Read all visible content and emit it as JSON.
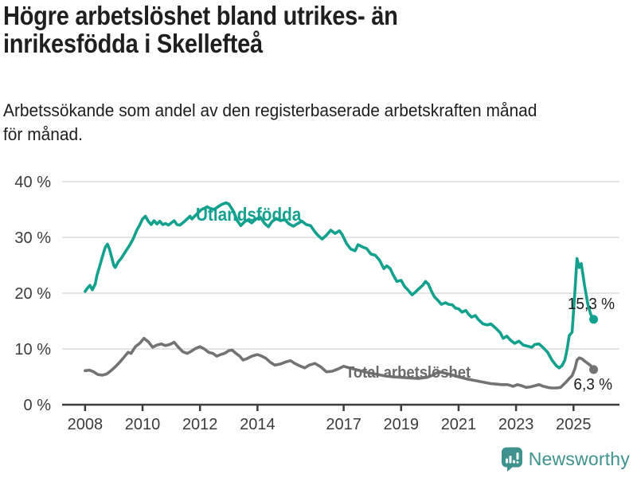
{
  "header": {
    "title_line1": "Högre arbetslöshet bland utrikes- än",
    "title_line2": "inrikesfödda i Skellefteå",
    "subtitle_line1": "Arbetssökande som andel av den registerbaserade arbetskraften månad",
    "subtitle_line2": "för månad."
  },
  "footer": {
    "brand": "Newsworthy"
  },
  "colors": {
    "teal": "#12a08f",
    "gray_line": "#737373",
    "gray_label": "#6b6b6b",
    "grid": "#dcdcdc",
    "axis": "#3c3c3c",
    "axis_text": "#3c3c3c",
    "title": "#1d1f21",
    "value_label": "#1c1c1c",
    "brand": "#3f928d",
    "background": "#ffffff"
  },
  "chart_data": {
    "type": "line",
    "title": "Högre arbetslöshet bland utrikes- än inrikesfödda i Skellefteå",
    "subtitle": "Arbetssökande som andel av den registerbaserade arbetskraften månad för månad.",
    "xlabel": "",
    "ylabel": "",
    "grid": "horizontal",
    "x_axis": {
      "min": 2007.2,
      "max": 2026.6,
      "ticks": [
        2008,
        2010,
        2012,
        2014,
        2017,
        2019,
        2021,
        2023,
        2025
      ],
      "labels": [
        "2008",
        "2010",
        "2012",
        "2014",
        "2017",
        "2019",
        "2021",
        "2023",
        "2025"
      ]
    },
    "y_axis": {
      "min": 0,
      "max": 40,
      "ticks": [
        0,
        10,
        20,
        30,
        40
      ],
      "labels": [
        "0 %",
        "10 %",
        "20 %",
        "30 %",
        "40 %"
      ]
    },
    "series": [
      {
        "name": "Utlandsfödda",
        "color": "#12a08f",
        "end_label": "15,3 %",
        "end_value": 15.3,
        "points": [
          [
            2008.0,
            20.3
          ],
          [
            2008.08,
            20.9
          ],
          [
            2008.17,
            21.4
          ],
          [
            2008.25,
            20.6
          ],
          [
            2008.35,
            21.6
          ],
          [
            2008.42,
            23.3
          ],
          [
            2008.5,
            24.7
          ],
          [
            2008.6,
            26.5
          ],
          [
            2008.7,
            28.2
          ],
          [
            2008.78,
            28.8
          ],
          [
            2008.85,
            27.9
          ],
          [
            2008.92,
            26.5
          ],
          [
            2009.0,
            25.0
          ],
          [
            2009.05,
            24.6
          ],
          [
            2009.15,
            25.6
          ],
          [
            2009.25,
            26.2
          ],
          [
            2009.35,
            27.0
          ],
          [
            2009.45,
            27.8
          ],
          [
            2009.55,
            28.6
          ],
          [
            2009.65,
            29.5
          ],
          [
            2009.72,
            30.3
          ],
          [
            2009.8,
            31.3
          ],
          [
            2009.9,
            32.2
          ],
          [
            2010.0,
            33.3
          ],
          [
            2010.1,
            33.8
          ],
          [
            2010.2,
            32.9
          ],
          [
            2010.3,
            32.3
          ],
          [
            2010.4,
            33.0
          ],
          [
            2010.5,
            32.4
          ],
          [
            2010.6,
            32.9
          ],
          [
            2010.7,
            32.3
          ],
          [
            2010.8,
            32.5
          ],
          [
            2010.9,
            32.2
          ],
          [
            2011.0,
            32.6
          ],
          [
            2011.1,
            33.0
          ],
          [
            2011.2,
            32.3
          ],
          [
            2011.3,
            32.2
          ],
          [
            2011.4,
            32.6
          ],
          [
            2011.55,
            33.3
          ],
          [
            2011.65,
            33.8
          ],
          [
            2011.72,
            33.3
          ],
          [
            2011.85,
            34.0
          ],
          [
            2011.95,
            34.5
          ],
          [
            2012.05,
            35.0
          ],
          [
            2012.15,
            35.2
          ],
          [
            2012.25,
            35.5
          ],
          [
            2012.35,
            35.2
          ],
          [
            2012.5,
            35.0
          ],
          [
            2012.6,
            35.4
          ],
          [
            2012.75,
            35.9
          ],
          [
            2012.9,
            36.2
          ],
          [
            2013.0,
            36.0
          ],
          [
            2013.15,
            34.8
          ],
          [
            2013.3,
            33.0
          ],
          [
            2013.42,
            32.1
          ],
          [
            2013.55,
            32.8
          ],
          [
            2013.65,
            33.1
          ],
          [
            2013.8,
            32.6
          ],
          [
            2013.95,
            33.3
          ],
          [
            2014.1,
            33.6
          ],
          [
            2014.25,
            32.5
          ],
          [
            2014.38,
            31.9
          ],
          [
            2014.5,
            32.8
          ],
          [
            2014.65,
            33.4
          ],
          [
            2014.8,
            33.0
          ],
          [
            2014.95,
            33.2
          ],
          [
            2015.1,
            32.4
          ],
          [
            2015.25,
            32.0
          ],
          [
            2015.4,
            32.5
          ],
          [
            2015.55,
            32.9
          ],
          [
            2015.7,
            32.3
          ],
          [
            2015.85,
            32.1
          ],
          [
            2016.0,
            31.0
          ],
          [
            2016.1,
            30.4
          ],
          [
            2016.25,
            29.7
          ],
          [
            2016.4,
            30.4
          ],
          [
            2016.55,
            31.3
          ],
          [
            2016.7,
            30.7
          ],
          [
            2016.85,
            31.2
          ],
          [
            2016.95,
            30.5
          ],
          [
            2017.1,
            28.9
          ],
          [
            2017.25,
            27.9
          ],
          [
            2017.4,
            27.6
          ],
          [
            2017.5,
            28.7
          ],
          [
            2017.65,
            28.3
          ],
          [
            2017.8,
            28.0
          ],
          [
            2017.95,
            27.0
          ],
          [
            2018.1,
            26.8
          ],
          [
            2018.25,
            25.9
          ],
          [
            2018.4,
            24.4
          ],
          [
            2018.5,
            24.9
          ],
          [
            2018.62,
            24.4
          ],
          [
            2018.72,
            23.3
          ],
          [
            2018.85,
            22.1
          ],
          [
            2019.0,
            22.3
          ],
          [
            2019.12,
            21.2
          ],
          [
            2019.25,
            20.5
          ],
          [
            2019.38,
            19.7
          ],
          [
            2019.5,
            20.2
          ],
          [
            2019.62,
            20.8
          ],
          [
            2019.75,
            21.4
          ],
          [
            2019.85,
            22.1
          ],
          [
            2019.95,
            21.6
          ],
          [
            2020.05,
            20.4
          ],
          [
            2020.15,
            19.4
          ],
          [
            2020.28,
            18.7
          ],
          [
            2020.4,
            18.0
          ],
          [
            2020.55,
            18.3
          ],
          [
            2020.65,
            18.0
          ],
          [
            2020.78,
            17.9
          ],
          [
            2020.9,
            17.3
          ],
          [
            2021.0,
            17.2
          ],
          [
            2021.12,
            16.6
          ],
          [
            2021.25,
            16.9
          ],
          [
            2021.35,
            16.2
          ],
          [
            2021.45,
            15.7
          ],
          [
            2021.58,
            16.0
          ],
          [
            2021.7,
            15.2
          ],
          [
            2021.85,
            14.5
          ],
          [
            2022.0,
            14.3
          ],
          [
            2022.12,
            14.5
          ],
          [
            2022.3,
            13.7
          ],
          [
            2022.45,
            12.9
          ],
          [
            2022.55,
            11.9
          ],
          [
            2022.68,
            12.3
          ],
          [
            2022.8,
            11.6
          ],
          [
            2022.95,
            11.0
          ],
          [
            2023.1,
            11.4
          ],
          [
            2023.25,
            10.7
          ],
          [
            2023.4,
            10.5
          ],
          [
            2023.55,
            10.3
          ],
          [
            2023.65,
            10.8
          ],
          [
            2023.8,
            10.9
          ],
          [
            2023.95,
            10.2
          ],
          [
            2024.1,
            9.4
          ],
          [
            2024.25,
            8.0
          ],
          [
            2024.4,
            7.0
          ],
          [
            2024.5,
            6.6
          ],
          [
            2024.6,
            7.0
          ],
          [
            2024.7,
            8.0
          ],
          [
            2024.78,
            10.0
          ],
          [
            2024.85,
            12.4
          ],
          [
            2024.95,
            13.0
          ],
          [
            2025.05,
            20.5
          ],
          [
            2025.12,
            26.2
          ],
          [
            2025.2,
            24.6
          ],
          [
            2025.27,
            25.3
          ],
          [
            2025.38,
            21.5
          ],
          [
            2025.5,
            18.0
          ],
          [
            2025.6,
            16.2
          ],
          [
            2025.7,
            15.3
          ]
        ]
      },
      {
        "name": "Total arbetslöshet",
        "color": "#737373",
        "end_label": "6,3 %",
        "end_value": 6.3,
        "points": [
          [
            2008.0,
            6.1
          ],
          [
            2008.15,
            6.2
          ],
          [
            2008.3,
            5.9
          ],
          [
            2008.45,
            5.4
          ],
          [
            2008.6,
            5.3
          ],
          [
            2008.75,
            5.5
          ],
          [
            2008.9,
            6.1
          ],
          [
            2009.05,
            6.8
          ],
          [
            2009.2,
            7.6
          ],
          [
            2009.35,
            8.5
          ],
          [
            2009.5,
            9.4
          ],
          [
            2009.6,
            9.2
          ],
          [
            2009.75,
            10.4
          ],
          [
            2009.9,
            11.0
          ],
          [
            2010.05,
            11.9
          ],
          [
            2010.2,
            11.3
          ],
          [
            2010.35,
            10.3
          ],
          [
            2010.5,
            10.7
          ],
          [
            2010.65,
            10.9
          ],
          [
            2010.8,
            10.6
          ],
          [
            2010.95,
            10.8
          ],
          [
            2011.1,
            11.2
          ],
          [
            2011.25,
            10.3
          ],
          [
            2011.4,
            9.5
          ],
          [
            2011.55,
            9.2
          ],
          [
            2011.7,
            9.6
          ],
          [
            2011.85,
            10.1
          ],
          [
            2012.0,
            10.4
          ],
          [
            2012.15,
            10.0
          ],
          [
            2012.3,
            9.4
          ],
          [
            2012.45,
            9.2
          ],
          [
            2012.58,
            8.7
          ],
          [
            2012.72,
            9.0
          ],
          [
            2012.85,
            9.2
          ],
          [
            2013.0,
            9.7
          ],
          [
            2013.12,
            9.8
          ],
          [
            2013.25,
            9.2
          ],
          [
            2013.38,
            8.7
          ],
          [
            2013.5,
            8.0
          ],
          [
            2013.65,
            8.3
          ],
          [
            2013.8,
            8.7
          ],
          [
            2014.0,
            9.0
          ],
          [
            2014.15,
            8.7
          ],
          [
            2014.3,
            8.3
          ],
          [
            2014.45,
            7.6
          ],
          [
            2014.6,
            7.1
          ],
          [
            2014.8,
            7.3
          ],
          [
            2015.0,
            7.7
          ],
          [
            2015.15,
            7.9
          ],
          [
            2015.3,
            7.4
          ],
          [
            2015.5,
            6.9
          ],
          [
            2015.65,
            6.6
          ],
          [
            2015.8,
            7.1
          ],
          [
            2016.0,
            7.4
          ],
          [
            2016.2,
            6.8
          ],
          [
            2016.4,
            5.9
          ],
          [
            2016.6,
            6.0
          ],
          [
            2016.8,
            6.4
          ],
          [
            2017.0,
            6.9
          ],
          [
            2017.2,
            6.6
          ],
          [
            2017.5,
            6.2
          ],
          [
            2017.8,
            5.8
          ],
          [
            2018.1,
            5.5
          ],
          [
            2018.4,
            5.2
          ],
          [
            2018.7,
            5.0
          ],
          [
            2019.0,
            4.9
          ],
          [
            2019.3,
            4.8
          ],
          [
            2019.6,
            4.7
          ],
          [
            2019.9,
            4.9
          ],
          [
            2020.1,
            5.3
          ],
          [
            2020.3,
            5.9
          ],
          [
            2020.5,
            5.7
          ],
          [
            2020.8,
            5.3
          ],
          [
            2021.0,
            5.0
          ],
          [
            2021.3,
            4.6
          ],
          [
            2021.6,
            4.3
          ],
          [
            2021.9,
            4.0
          ],
          [
            2022.1,
            3.8
          ],
          [
            2022.3,
            3.7
          ],
          [
            2022.5,
            3.6
          ],
          [
            2022.7,
            3.6
          ],
          [
            2022.9,
            3.3
          ],
          [
            2023.05,
            3.6
          ],
          [
            2023.2,
            3.4
          ],
          [
            2023.35,
            3.1
          ],
          [
            2023.5,
            3.2
          ],
          [
            2023.65,
            3.4
          ],
          [
            2023.8,
            3.6
          ],
          [
            2023.95,
            3.3
          ],
          [
            2024.1,
            3.1
          ],
          [
            2024.25,
            3.0
          ],
          [
            2024.4,
            3.0
          ],
          [
            2024.55,
            3.1
          ],
          [
            2024.65,
            3.6
          ],
          [
            2024.75,
            4.1
          ],
          [
            2024.85,
            4.7
          ],
          [
            2024.95,
            5.2
          ],
          [
            2025.05,
            6.5
          ],
          [
            2025.12,
            8.0
          ],
          [
            2025.2,
            8.4
          ],
          [
            2025.3,
            8.2
          ],
          [
            2025.42,
            7.7
          ],
          [
            2025.55,
            7.2
          ],
          [
            2025.65,
            6.8
          ],
          [
            2025.7,
            6.3
          ]
        ]
      }
    ]
  }
}
